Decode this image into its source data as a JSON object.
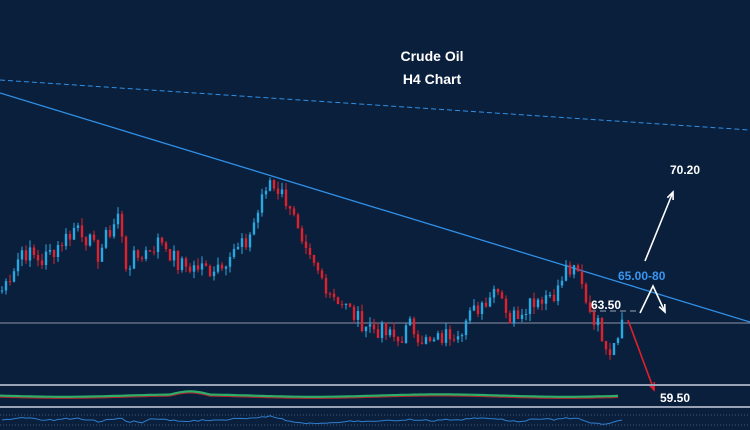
{
  "chart_data": {
    "type": "candlestick",
    "title": "Crude Oil",
    "subtitle": "H4 Chart",
    "colors": {
      "background": "#0a1f3c",
      "up": "#29a8e0",
      "down": "#e0202a",
      "trendline": "#2f8fe6",
      "annotation": "#ffffff",
      "bearish_arrow": "#e0202a",
      "zone_label": "#3a95f0"
    },
    "price_path": [
      {
        "i": 0,
        "p": 64.2
      },
      {
        "i": 5,
        "p": 66.1
      },
      {
        "i": 10,
        "p": 65.6
      },
      {
        "i": 19,
        "p": 67.3
      },
      {
        "i": 24,
        "p": 65.9
      },
      {
        "i": 29,
        "p": 67.8
      },
      {
        "i": 31,
        "p": 65.4
      },
      {
        "i": 40,
        "p": 66.6
      },
      {
        "i": 44,
        "p": 65.4
      },
      {
        "i": 52,
        "p": 65.2
      },
      {
        "i": 61,
        "p": 66.4
      },
      {
        "i": 67,
        "p": 69.5
      },
      {
        "i": 72,
        "p": 68.3
      },
      {
        "i": 75,
        "p": 66.1
      },
      {
        "i": 82,
        "p": 64.2
      },
      {
        "i": 89,
        "p": 62.8
      },
      {
        "i": 99,
        "p": 61.8
      },
      {
        "i": 102,
        "p": 62.5
      },
      {
        "i": 107,
        "p": 61.6
      },
      {
        "i": 115,
        "p": 62.5
      },
      {
        "i": 124,
        "p": 64.5
      },
      {
        "i": 127,
        "p": 62.8
      },
      {
        "i": 132,
        "p": 63.7
      },
      {
        "i": 139,
        "p": 64.2
      },
      {
        "i": 141,
        "p": 65.2
      },
      {
        "i": 144,
        "p": 64.9
      },
      {
        "i": 147,
        "p": 63.3
      },
      {
        "i": 152,
        "p": 61.4
      },
      {
        "i": 155,
        "p": 62.8
      }
    ],
    "annotations": {
      "target_up": "70.20",
      "resistance_zone": "65.00-80",
      "level": "63.50",
      "target_down": "59.50"
    },
    "grid": false
  }
}
